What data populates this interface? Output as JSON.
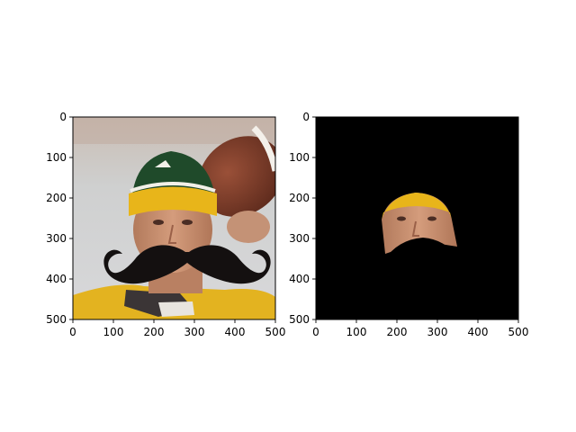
{
  "chart_data": [
    {
      "type": "image",
      "content": "photo of a football player in a green-and-yellow knit cap with a black cartoon mustache overlay",
      "xlim": [
        0,
        500
      ],
      "ylim": [
        500,
        0
      ],
      "x_ticks": [
        0,
        100,
        200,
        300,
        400,
        500
      ],
      "y_ticks": [
        0,
        100,
        200,
        300,
        400,
        500
      ],
      "title": "",
      "xlabel": "",
      "ylabel": ""
    },
    {
      "type": "image",
      "content": "masked version: black background with only the face region visible and the mustache blacked out",
      "xlim": [
        0,
        500
      ],
      "ylim": [
        500,
        0
      ],
      "x_ticks": [
        0,
        100,
        200,
        300,
        400,
        500
      ],
      "y_ticks": [
        0,
        100,
        200,
        300,
        400,
        500
      ],
      "title": "",
      "xlabel": "",
      "ylabel": ""
    }
  ],
  "colors": {
    "cap_green": "#1f4a2a",
    "cap_yellow": "#e8b51a",
    "jersey_yellow": "#e3b320",
    "skin": "#c98f6e",
    "football": "#7a3a26",
    "mustache": "#141010"
  }
}
